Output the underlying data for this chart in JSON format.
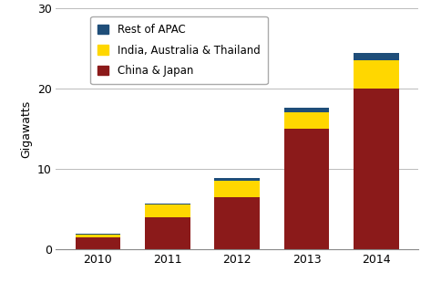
{
  "years": [
    "2010",
    "2011",
    "2012",
    "2013",
    "2014"
  ],
  "china_japan": [
    1.5,
    4.0,
    6.5,
    15.0,
    20.0
  ],
  "india_aus_thai": [
    0.3,
    1.5,
    2.0,
    2.0,
    3.5
  ],
  "rest_of_apac": [
    0.15,
    0.2,
    0.35,
    0.6,
    1.0
  ],
  "colors": {
    "china_japan": "#8B1A1A",
    "india_aus_thai": "#FFD700",
    "rest_of_apac": "#1F4E79"
  },
  "legend_labels": [
    "Rest of APAC",
    "India, Australia & Thailand",
    "China & Japan"
  ],
  "ylabel": "Gigawatts",
  "ylim": [
    0,
    30
  ],
  "yticks": [
    0,
    10,
    20,
    30
  ],
  "bar_width": 0.65,
  "background_color": "#FFFFFF",
  "grid_color": "#BBBBBB"
}
